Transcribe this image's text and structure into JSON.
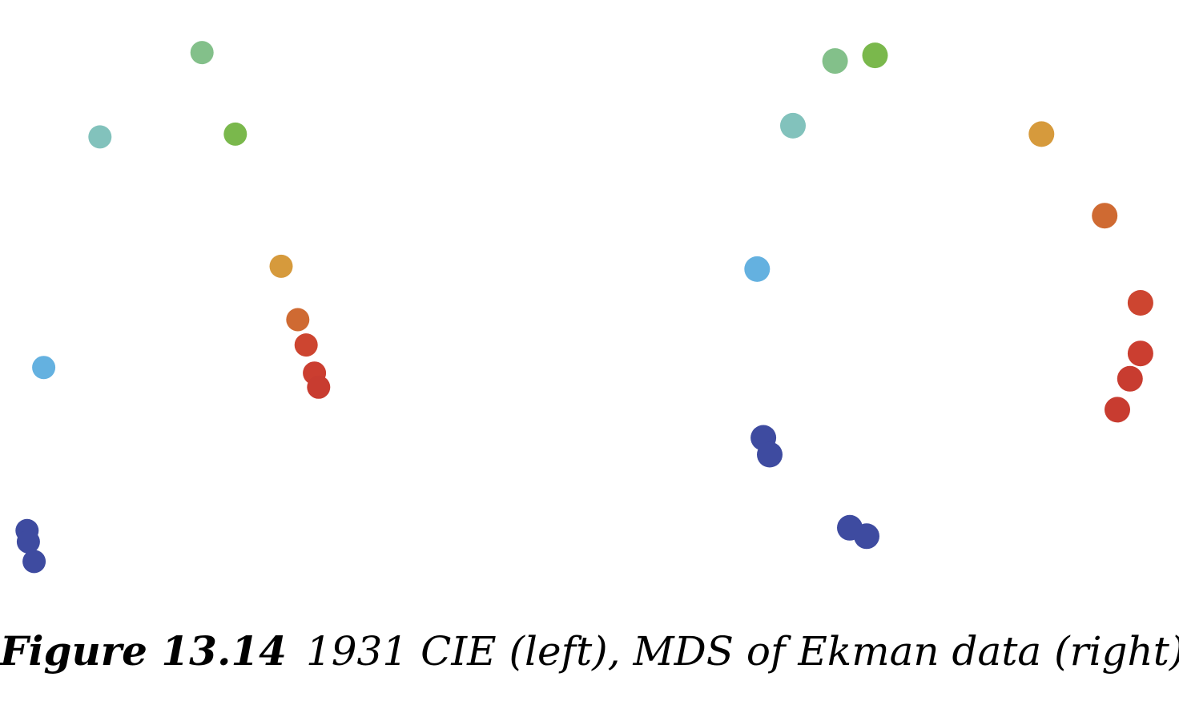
{
  "caption": {
    "label": "Figure 13.14",
    "text": "1931 CIE (left), MDS of Ekman data (right)"
  },
  "chart_data": [
    {
      "type": "scatter",
      "panel": "left",
      "grid": false,
      "axes_visible": false,
      "xlim": [
        0,
        100
      ],
      "ylim": [
        0,
        100
      ],
      "points": [
        {
          "x": 48.5,
          "y": 95.5,
          "color": "#83c08a"
        },
        {
          "x": 24.0,
          "y": 80.5,
          "color": "#82c2bc"
        },
        {
          "x": 56.5,
          "y": 81.0,
          "color": "#7ab84c"
        },
        {
          "x": 67.5,
          "y": 57.5,
          "color": "#d69a3c"
        },
        {
          "x": 71.5,
          "y": 48.0,
          "color": "#cf6a32"
        },
        {
          "x": 73.5,
          "y": 43.5,
          "color": "#cd4530"
        },
        {
          "x": 75.5,
          "y": 38.5,
          "color": "#cb3e30"
        },
        {
          "x": 76.5,
          "y": 36.0,
          "color": "#c83c30"
        },
        {
          "x": 10.5,
          "y": 39.5,
          "color": "#64b1e0"
        },
        {
          "x": 6.5,
          "y": 10.5,
          "color": "#3e4ba0"
        },
        {
          "x": 6.8,
          "y": 8.5,
          "color": "#3e4ba0"
        },
        {
          "x": 8.2,
          "y": 5.0,
          "color": "#3e4ba0"
        }
      ]
    },
    {
      "type": "scatter",
      "panel": "right",
      "grid": false,
      "axes_visible": false,
      "xlim": [
        0,
        100
      ],
      "ylim": [
        0,
        100
      ],
      "points": [
        {
          "x": 19.5,
          "y": 94.0,
          "color": "#83c08a"
        },
        {
          "x": 29.0,
          "y": 95.0,
          "color": "#7ab84c"
        },
        {
          "x": 9.5,
          "y": 82.5,
          "color": "#82c2bc"
        },
        {
          "x": 68.5,
          "y": 81.0,
          "color": "#d69a3c"
        },
        {
          "x": 83.5,
          "y": 66.5,
          "color": "#cf6a32"
        },
        {
          "x": 1.0,
          "y": 57.0,
          "color": "#64b1e0"
        },
        {
          "x": 92.0,
          "y": 51.0,
          "color": "#cd4530"
        },
        {
          "x": 92.0,
          "y": 42.0,
          "color": "#cb3e30"
        },
        {
          "x": 89.5,
          "y": 37.5,
          "color": "#c83c30"
        },
        {
          "x": 86.5,
          "y": 32.0,
          "color": "#c83c30"
        },
        {
          "x": 2.5,
          "y": 27.0,
          "color": "#3e4ba0"
        },
        {
          "x": 4.0,
          "y": 24.0,
          "color": "#3e4ba0"
        },
        {
          "x": 23.0,
          "y": 11.0,
          "color": "#3e4ba0"
        },
        {
          "x": 27.0,
          "y": 9.5,
          "color": "#3e4ba0"
        }
      ]
    }
  ]
}
